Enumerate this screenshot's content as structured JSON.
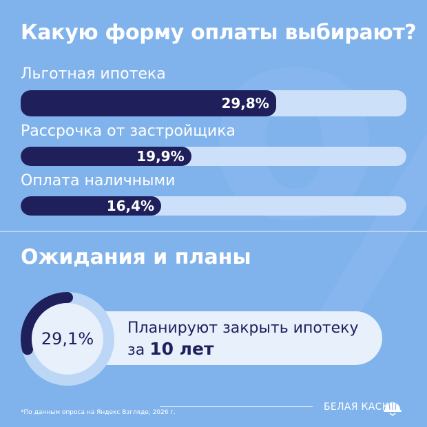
{
  "header": {
    "title": "Какую форму оплаты выбирают?"
  },
  "chart_data": [
    {
      "type": "bar",
      "orientation": "horizontal",
      "categories": [
        "Льготная ипотека",
        "Рассрочка от застройщика",
        "Оплата наличными"
      ],
      "values": [
        29.8,
        19.9,
        16.4
      ],
      "value_labels": [
        "29,8%",
        "19,9%",
        "16,4%"
      ],
      "unit": "%",
      "xlim": [
        0,
        45
      ],
      "colors": {
        "fill": "#1f1f5c",
        "track": "#cde0fa"
      }
    },
    {
      "type": "pie",
      "style": "donut",
      "values": [
        29.1
      ],
      "value_label": "29,1%",
      "total": 100,
      "colors": {
        "fill": "#1f1f5c",
        "track": "#bcd7f5",
        "center": "#e7f0fb"
      }
    }
  ],
  "section2": {
    "title": "Ожидания и планы",
    "text_line1": "Планируют закрыть ипотеку",
    "text_prefix": "за ",
    "text_bold": "10 лет"
  },
  "footer": {
    "note": "*По данным опроса на Яндекс Взгляде, 2026 г.",
    "brand": "БЕЛАЯ КАСКА",
    "brand_icon": "hard-hat-icon"
  },
  "colors": {
    "background": "#80b2ec",
    "accent": "#1f1f5c"
  }
}
